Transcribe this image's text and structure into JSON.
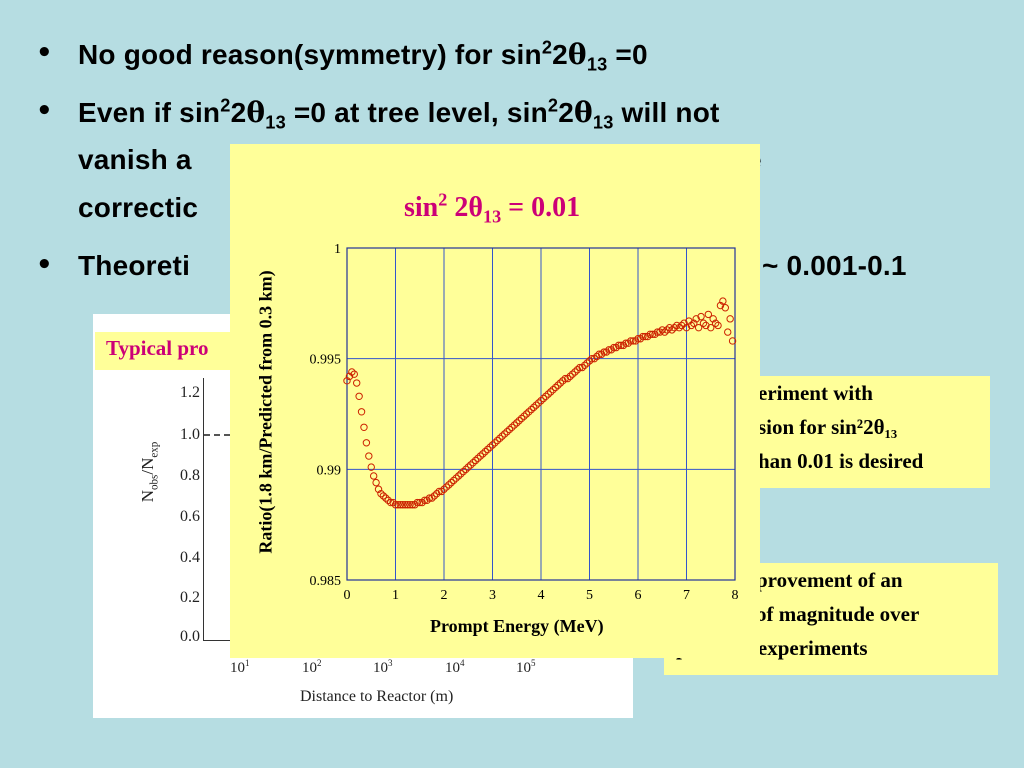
{
  "bullets": [
    {
      "dot": "•",
      "lines": [
        {
          "parts": [
            {
              "t": "No good reason(symmetry) for sin"
            },
            {
              "sup": "2"
            },
            {
              "t": "2"
            },
            {
              "theta": "θ"
            },
            {
              "sub": "13"
            },
            {
              "t": " =0"
            }
          ]
        }
      ]
    },
    {
      "dot": "•",
      "lines": [
        {
          "parts": [
            {
              "t": "Even if sin"
            },
            {
              "sup": "2"
            },
            {
              "t": "2"
            },
            {
              "theta": "θ"
            },
            {
              "sub": "13"
            },
            {
              "t": " =0 at tree level, sin"
            },
            {
              "sup": "2"
            },
            {
              "t": "2"
            },
            {
              "theta": "θ"
            },
            {
              "sub": "13"
            },
            {
              "t": " will not"
            }
          ]
        },
        {
          "parts": [
            {
              "t": "vanish a"
            }
          ],
          "tail": "e"
        },
        {
          "parts": [
            {
              "t": "correctic"
            }
          ]
        }
      ]
    },
    {
      "dot": "•",
      "lines": [
        {
          "parts": [
            {
              "t": "Theoreti"
            }
          ],
          "tail": "~ 0.001-0.1"
        }
      ]
    }
  ],
  "background_plot": {
    "title_fragment": "Typical pro",
    "y_ticks": [
      "1.2",
      "1.0",
      "0.8",
      "0.6",
      "0.4",
      "0.2",
      "0.0"
    ],
    "y_label_main": "N",
    "y_label_sub1": "obs",
    "y_label_mid": "/N",
    "y_label_sub2": "exp",
    "x_ticks": [
      {
        "base": "10",
        "exp": "1"
      },
      {
        "base": "10",
        "exp": "2"
      },
      {
        "base": "10",
        "exp": "3"
      },
      {
        "base": "10",
        "exp": "4"
      },
      {
        "base": "10",
        "exp": "5"
      }
    ],
    "x_label": "Distance to Reactor (m)"
  },
  "notes": {
    "note1": [
      "eriment with",
      "sion for sin²2θ₁₃",
      "han 0.01 is desired"
    ],
    "note2": [
      "provement of an",
      "of magnitude over",
      "previous experiments"
    ]
  },
  "chart_data": {
    "type": "scatter",
    "title_text": "sin",
    "title_sup": "2",
    "title_mid": " 2θ",
    "title_sub": "13",
    "title_end": " = 0.01",
    "xlabel": "Prompt Energy (MeV)",
    "ylabel": "Ratio(1.8 km/Predicted from 0.3 km)",
    "xlim": [
      0,
      8
    ],
    "ylim": [
      0.985,
      1.0
    ],
    "x_ticks": [
      0,
      1,
      2,
      3,
      4,
      5,
      6,
      7,
      8
    ],
    "y_ticks": [
      0.985,
      0.99,
      0.995,
      1
    ],
    "y_tick_labels": [
      "0.985",
      "0.99",
      "0.995",
      "1"
    ],
    "grid": true,
    "marker_color": "#cc2200",
    "grid_color": "#3355cc",
    "series": [
      {
        "x": [
          0.0,
          0.05,
          0.1,
          0.15,
          0.2,
          0.25,
          0.3,
          0.35,
          0.4,
          0.45,
          0.5,
          0.55,
          0.6,
          0.65,
          0.7,
          0.75,
          0.8,
          0.85,
          0.9,
          0.95,
          1.0,
          1.05,
          1.1,
          1.15,
          1.2,
          1.25,
          1.3,
          1.35,
          1.4,
          1.45,
          1.5,
          1.55,
          1.6,
          1.65,
          1.7,
          1.75,
          1.8,
          1.85,
          1.9,
          1.95,
          2.0,
          2.05,
          2.1,
          2.15,
          2.2,
          2.25,
          2.3,
          2.35,
          2.4,
          2.45,
          2.5,
          2.55,
          2.6,
          2.65,
          2.7,
          2.75,
          2.8,
          2.85,
          2.9,
          2.95,
          3.0,
          3.05,
          3.1,
          3.15,
          3.2,
          3.25,
          3.3,
          3.35,
          3.4,
          3.45,
          3.5,
          3.55,
          3.6,
          3.65,
          3.7,
          3.75,
          3.8,
          3.85,
          3.9,
          3.95,
          4.0,
          4.05,
          4.1,
          4.15,
          4.2,
          4.25,
          4.3,
          4.35,
          4.4,
          4.45,
          4.5,
          4.55,
          4.6,
          4.65,
          4.7,
          4.75,
          4.8,
          4.85,
          4.9,
          4.95,
          5.0,
          5.05,
          5.1,
          5.15,
          5.2,
          5.25,
          5.3,
          5.35,
          5.4,
          5.45,
          5.5,
          5.55,
          5.6,
          5.65,
          5.7,
          5.75,
          5.8,
          5.85,
          5.9,
          5.95,
          6.0,
          6.05,
          6.1,
          6.15,
          6.2,
          6.25,
          6.3,
          6.35,
          6.4,
          6.45,
          6.5,
          6.55,
          6.6,
          6.65,
          6.7,
          6.75,
          6.8,
          6.85,
          6.9,
          6.95,
          7.0,
          7.05,
          7.1,
          7.15,
          7.2,
          7.25,
          7.3,
          7.35,
          7.4,
          7.45,
          7.5,
          7.55,
          7.6,
          7.65,
          7.7,
          7.75,
          7.8,
          7.85,
          7.9,
          7.95
        ],
        "y": [
          0.994,
          0.9942,
          0.9944,
          0.9943,
          0.9939,
          0.9933,
          0.9926,
          0.9919,
          0.9912,
          0.9906,
          0.9901,
          0.9897,
          0.9894,
          0.9891,
          0.9889,
          0.9888,
          0.9887,
          0.9886,
          0.9885,
          0.9885,
          0.9884,
          0.9884,
          0.9884,
          0.9884,
          0.9884,
          0.9884,
          0.9884,
          0.9884,
          0.9884,
          0.9885,
          0.9885,
          0.9885,
          0.9886,
          0.9886,
          0.9887,
          0.9887,
          0.9888,
          0.9889,
          0.989,
          0.989,
          0.9891,
          0.9892,
          0.9893,
          0.9894,
          0.9895,
          0.9896,
          0.9897,
          0.9898,
          0.9899,
          0.99,
          0.9901,
          0.9902,
          0.9903,
          0.9904,
          0.9905,
          0.9906,
          0.9907,
          0.9908,
          0.9909,
          0.991,
          0.9911,
          0.9912,
          0.9913,
          0.9914,
          0.9915,
          0.9916,
          0.9917,
          0.9918,
          0.9919,
          0.992,
          0.9921,
          0.9922,
          0.9923,
          0.9924,
          0.9925,
          0.9926,
          0.9927,
          0.9928,
          0.9929,
          0.993,
          0.9931,
          0.9932,
          0.9933,
          0.9934,
          0.9935,
          0.9936,
          0.9937,
          0.9938,
          0.9939,
          0.994,
          0.9941,
          0.9941,
          0.9942,
          0.9943,
          0.9944,
          0.9945,
          0.9946,
          0.9946,
          0.9947,
          0.9948,
          0.9949,
          0.995,
          0.995,
          0.9951,
          0.9952,
          0.9952,
          0.9953,
          0.9953,
          0.9954,
          0.9954,
          0.9955,
          0.9955,
          0.9956,
          0.9956,
          0.9956,
          0.9957,
          0.9957,
          0.9958,
          0.9958,
          0.9958,
          0.9959,
          0.9959,
          0.996,
          0.996,
          0.996,
          0.9961,
          0.9961,
          0.9961,
          0.9962,
          0.9962,
          0.9963,
          0.9962,
          0.9963,
          0.9964,
          0.9963,
          0.9964,
          0.9965,
          0.9964,
          0.9965,
          0.9966,
          0.9964,
          0.9967,
          0.9965,
          0.9966,
          0.9968,
          0.9964,
          0.9969,
          0.9966,
          0.9965,
          0.997,
          0.9964,
          0.9968,
          0.9966,
          0.9965,
          0.9974,
          0.9976,
          0.9973,
          0.9962,
          0.9968,
          0.9958
        ]
      }
    ]
  }
}
